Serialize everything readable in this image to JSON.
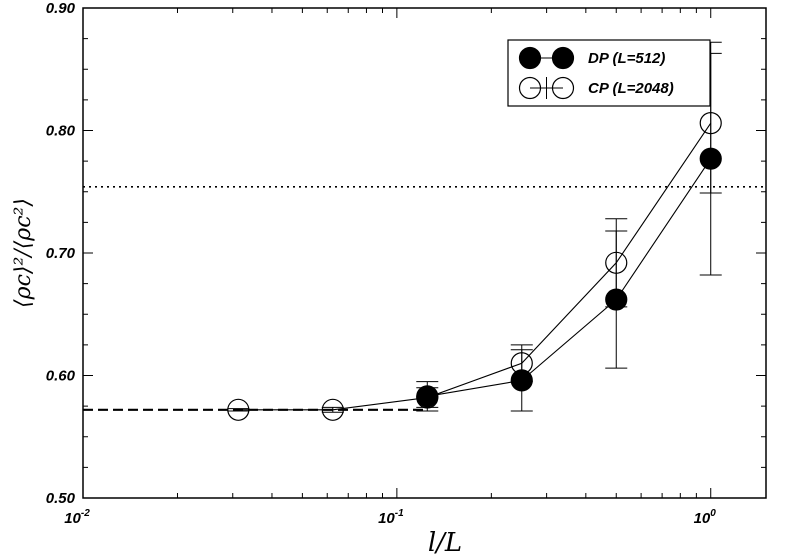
{
  "chart_data": {
    "type": "scatter",
    "x_scale": "log",
    "xlim": [
      0.01,
      1.5
    ],
    "ylim": [
      0.5,
      0.9
    ],
    "xticks": [
      {
        "value": 0.01,
        "base": "10",
        "exp": "-2"
      },
      {
        "value": 0.1,
        "base": "10",
        "exp": "-1"
      },
      {
        "value": 1,
        "base": "10",
        "exp": "0"
      }
    ],
    "yticks": [
      "0.50",
      "0.60",
      "0.70",
      "0.80",
      "0.90"
    ],
    "ytick_values": [
      0.5,
      0.6,
      0.7,
      0.8,
      0.9
    ],
    "xlabel": "l/L",
    "ylabel": "⟨ρc⟩²/⟨ρc²⟩",
    "grid": false,
    "legend_position": "top-right",
    "series": [
      {
        "name": "DP (L=512)",
        "marker": "filled-circle",
        "x": [
          0.125,
          0.25,
          0.5,
          1.0
        ],
        "y": [
          0.583,
          0.596,
          0.662,
          0.777
        ],
        "err": [
          0.012,
          0.025,
          0.056,
          0.095
        ],
        "connected": true
      },
      {
        "name": "CP (L=2048)",
        "marker": "open-circle",
        "x": [
          0.03125,
          0.0625,
          0.125,
          0.25,
          0.5,
          1.0
        ],
        "y": [
          0.572,
          0.572,
          0.582,
          0.61,
          0.692,
          0.806
        ],
        "err": [
          0.001,
          0.002,
          0.008,
          0.015,
          0.036,
          0.057
        ],
        "connected": true
      }
    ],
    "reference_lines": [
      {
        "style": "dotted",
        "y": 0.754,
        "x_range": [
          0.01,
          1.5
        ]
      },
      {
        "style": "dashed",
        "y": 0.572,
        "x_range": [
          0.01,
          0.125
        ]
      }
    ]
  }
}
